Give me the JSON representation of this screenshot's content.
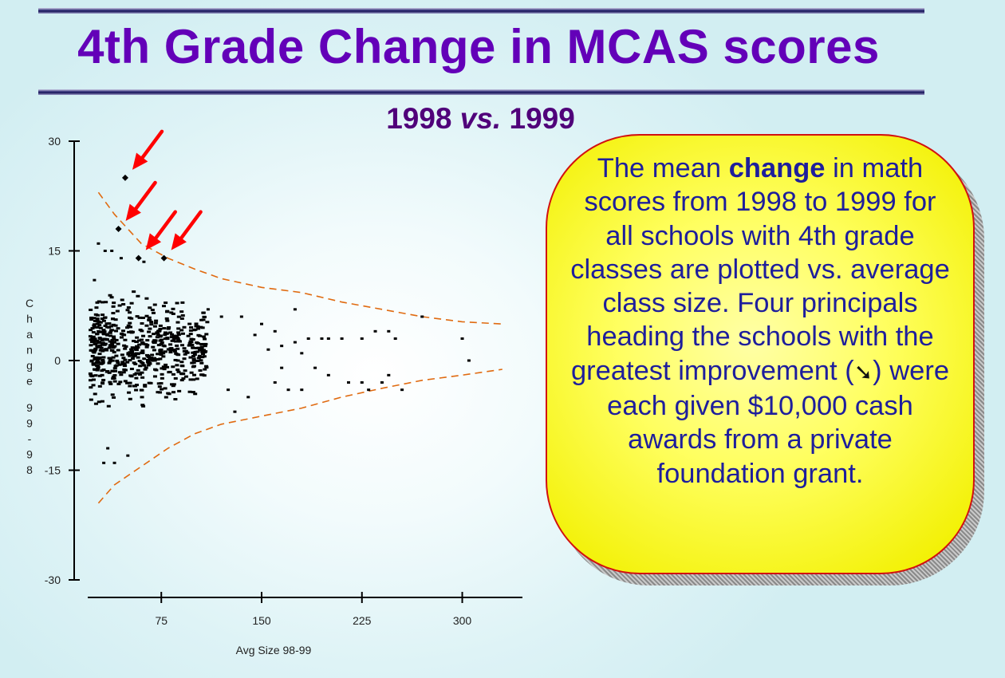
{
  "title": "4th Grade Change in MCAS scores",
  "subtitle": {
    "left": "1998 ",
    "middle": "vs.",
    "right": " 1999"
  },
  "callout": {
    "part1": "The mean ",
    "bold": "change",
    "part2": " in math scores from 1998 to 1999 for all schools with 4th grade classes are plotted vs. average class size. Four principals heading the schools with the greatest improvement (",
    "glyph": "➘",
    "part3": ") were each given $10,000 cash awards from a private foundation grant."
  },
  "colors": {
    "title": "#6300b8",
    "subtitle": "#50007a",
    "callout_text": "#1e1e9c",
    "callout_fill": "#ffff60",
    "callout_border": "#d21010",
    "arrow": "#ff0000",
    "bound_line": "#e06a10",
    "points": "#000000"
  },
  "chart_data": {
    "type": "scatter",
    "xlabel": "Avg Size 98-99",
    "ylabel": "Change 99-98",
    "xlim": [
      20,
      345
    ],
    "ylim": [
      -30,
      30
    ],
    "xticks": [
      75,
      150,
      225,
      300
    ],
    "yticks": [
      30,
      15,
      0,
      -15,
      -30
    ],
    "grid": false,
    "highlighted_points": [
      {
        "x": 48,
        "y": 25
      },
      {
        "x": 43,
        "y": 18
      },
      {
        "x": 58,
        "y": 14
      },
      {
        "x": 77,
        "y": 14
      }
    ],
    "outliers": [
      {
        "x": 28,
        "y": 16
      },
      {
        "x": 33,
        "y": 15
      },
      {
        "x": 38,
        "y": 15
      },
      {
        "x": 45,
        "y": 14
      },
      {
        "x": 62,
        "y": 13.5
      },
      {
        "x": 25,
        "y": 11
      },
      {
        "x": 32,
        "y": -14
      },
      {
        "x": 40,
        "y": -14
      },
      {
        "x": 50,
        "y": -13
      },
      {
        "x": 35,
        "y": -12
      },
      {
        "x": 110,
        "y": 7
      },
      {
        "x": 120,
        "y": 6
      },
      {
        "x": 135,
        "y": 6
      },
      {
        "x": 150,
        "y": 5
      },
      {
        "x": 145,
        "y": 3.5
      },
      {
        "x": 160,
        "y": 4
      },
      {
        "x": 175,
        "y": 7
      },
      {
        "x": 185,
        "y": 3
      },
      {
        "x": 165,
        "y": 2
      },
      {
        "x": 155,
        "y": 1.5
      },
      {
        "x": 195,
        "y": 3
      },
      {
        "x": 200,
        "y": 3
      },
      {
        "x": 210,
        "y": 3
      },
      {
        "x": 225,
        "y": 3
      },
      {
        "x": 235,
        "y": 4
      },
      {
        "x": 245,
        "y": 4
      },
      {
        "x": 250,
        "y": 3
      },
      {
        "x": 270,
        "y": 6
      },
      {
        "x": 300,
        "y": 3
      },
      {
        "x": 305,
        "y": 0
      },
      {
        "x": 245,
        "y": -2
      },
      {
        "x": 240,
        "y": -3
      },
      {
        "x": 225,
        "y": -3
      },
      {
        "x": 200,
        "y": -2
      },
      {
        "x": 190,
        "y": -1
      },
      {
        "x": 180,
        "y": -4
      },
      {
        "x": 170,
        "y": -4
      },
      {
        "x": 160,
        "y": -3
      },
      {
        "x": 165,
        "y": -1
      },
      {
        "x": 180,
        "y": 1
      },
      {
        "x": 175,
        "y": 2.5
      },
      {
        "x": 140,
        "y": -5
      },
      {
        "x": 130,
        "y": -7
      },
      {
        "x": 125,
        "y": -4
      },
      {
        "x": 215,
        "y": -3
      },
      {
        "x": 255,
        "y": -4
      },
      {
        "x": 230,
        "y": -4
      }
    ],
    "dense_cluster": {
      "x_range": [
        22,
        110
      ],
      "y_range": [
        -10,
        10
      ],
      "n": 620
    },
    "bounds": {
      "upper": [
        [
          28,
          23
        ],
        [
          40,
          20
        ],
        [
          60,
          16
        ],
        [
          80,
          14
        ],
        [
          100,
          12.5
        ],
        [
          120,
          11.2
        ],
        [
          150,
          10
        ],
        [
          180,
          9.3
        ],
        [
          210,
          8
        ],
        [
          240,
          7
        ],
        [
          270,
          6
        ],
        [
          300,
          5.3
        ],
        [
          330,
          5
        ]
      ],
      "lower": [
        [
          28,
          -19.5
        ],
        [
          40,
          -17
        ],
        [
          60,
          -14.5
        ],
        [
          80,
          -12
        ],
        [
          100,
          -10
        ],
        [
          120,
          -8.7
        ],
        [
          150,
          -7.6
        ],
        [
          180,
          -6.5
        ],
        [
          210,
          -5
        ],
        [
          240,
          -3.8
        ],
        [
          270,
          -2.7
        ],
        [
          300,
          -2
        ],
        [
          330,
          -1.2
        ]
      ]
    }
  }
}
